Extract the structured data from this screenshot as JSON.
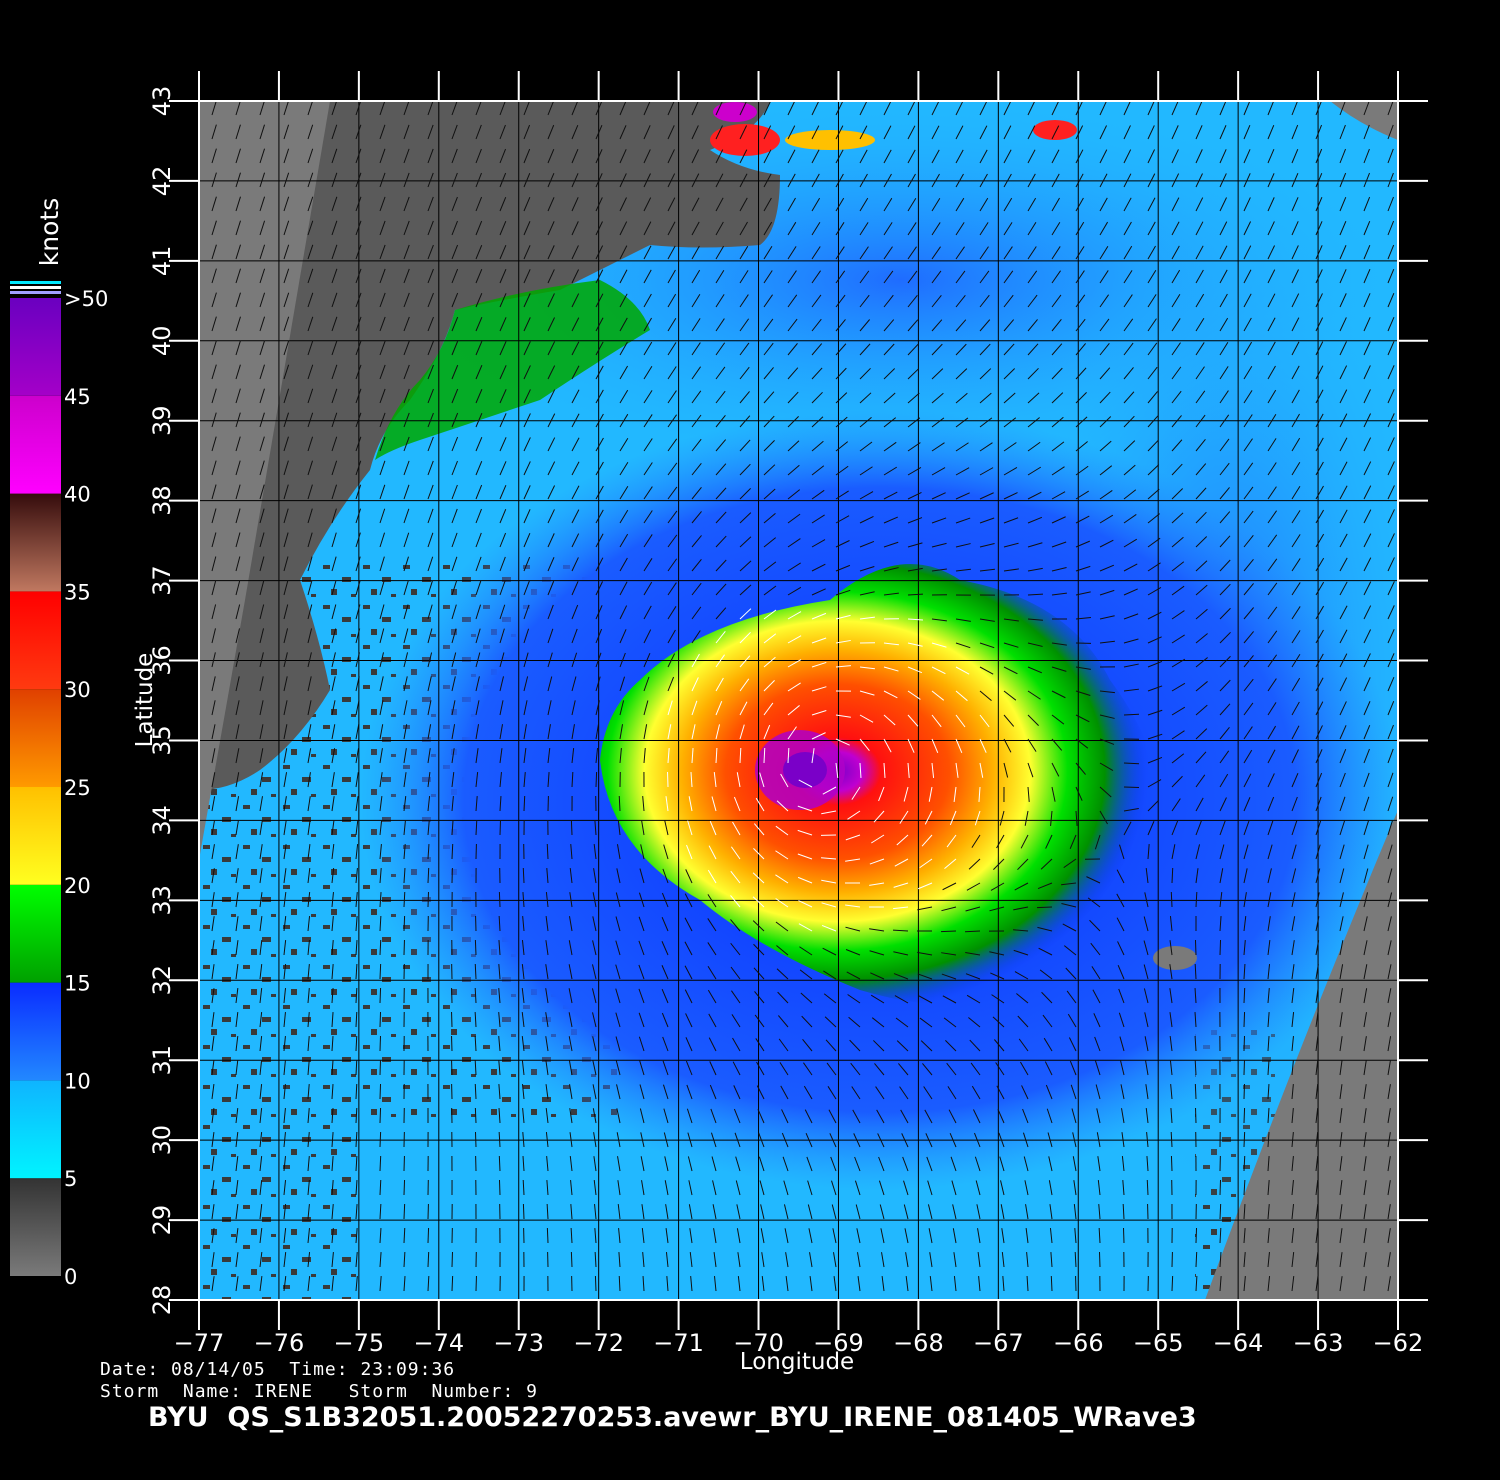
{
  "legend": {
    "unit_label": "knots",
    "tick_labels": [
      "0",
      "5",
      "10",
      "15",
      "20",
      "25",
      "30",
      "35",
      "40",
      "45",
      ">50"
    ],
    "bands": [
      {
        "from": 0,
        "to": 5,
        "colors": [
          "#7a7a7a",
          "#333333"
        ]
      },
      {
        "from": 5,
        "to": 10,
        "colors": [
          "#00f4ff",
          "#0fb4ff"
        ]
      },
      {
        "from": 10,
        "to": 15,
        "colors": [
          "#2288ff",
          "#0a2cff"
        ]
      },
      {
        "from": 15,
        "to": 20,
        "colors": [
          "#00a000",
          "#00ff00"
        ]
      },
      {
        "from": 20,
        "to": 25,
        "colors": [
          "#ffff20",
          "#ffc000"
        ]
      },
      {
        "from": 25,
        "to": 30,
        "colors": [
          "#ff9a00",
          "#e04000"
        ]
      },
      {
        "from": 30,
        "to": 35,
        "colors": [
          "#ff3a10",
          "#ff0000"
        ]
      },
      {
        "from": 35,
        "to": 40,
        "colors": [
          "#c07860",
          "#350c0c"
        ]
      },
      {
        "from": 40,
        "to": 45,
        "colors": [
          "#ff00ff",
          "#cc00cc"
        ]
      },
      {
        "from": 45,
        "to": 50,
        "colors": [
          "#a400c8",
          "#6a00c0"
        ]
      }
    ]
  },
  "axes": {
    "xlabel": "Longitude",
    "ylabel": "Latitude",
    "lon_range": [
      -77,
      -62
    ],
    "lat_range": [
      28,
      43
    ],
    "lon_ticks": [
      -77,
      -76,
      -75,
      -74,
      -73,
      -72,
      -71,
      -70,
      -69,
      -68,
      -67,
      -66,
      -65,
      -64,
      -63,
      -62
    ],
    "lon_tick_labels": [
      "−77",
      "−76",
      "−75",
      "−74",
      "−73",
      "−72",
      "−71",
      "−70",
      "−69",
      "−68",
      "−67",
      "−66",
      "−65",
      "−64",
      "−63",
      "−62"
    ],
    "lat_ticks": [
      28,
      29,
      30,
      31,
      32,
      33,
      34,
      35,
      36,
      37,
      38,
      39,
      40,
      41,
      42,
      43
    ],
    "lat_tick_labels": [
      "28",
      "29",
      "30",
      "31",
      "32",
      "33",
      "34",
      "35",
      "36",
      "37",
      "38",
      "39",
      "40",
      "41",
      "42",
      "43"
    ],
    "grid": true
  },
  "storm_center": {
    "lon": -69.2,
    "lat": 34.7
  },
  "footer": {
    "date_label": "Date:",
    "date": "08/14/05",
    "time_label": "Time:",
    "time": "23:09:36",
    "storm_name_label": "Storm  Name:",
    "storm_name": "IRENE",
    "storm_number_label": "Storm  Number:",
    "storm_number": "9",
    "file_name": "BYU  QS_S1B32051.20052270253.avewr_BYU_IRENE_081405_WRave3"
  },
  "colors": {
    "land": "#5a5a5a",
    "land_dark": "#4a4a4a",
    "no_data": "#7a7a7a",
    "ocean_light": "#22b8ff",
    "ocean_blue": "#1f6cff",
    "ocean_deep": "#0a2cff"
  }
}
